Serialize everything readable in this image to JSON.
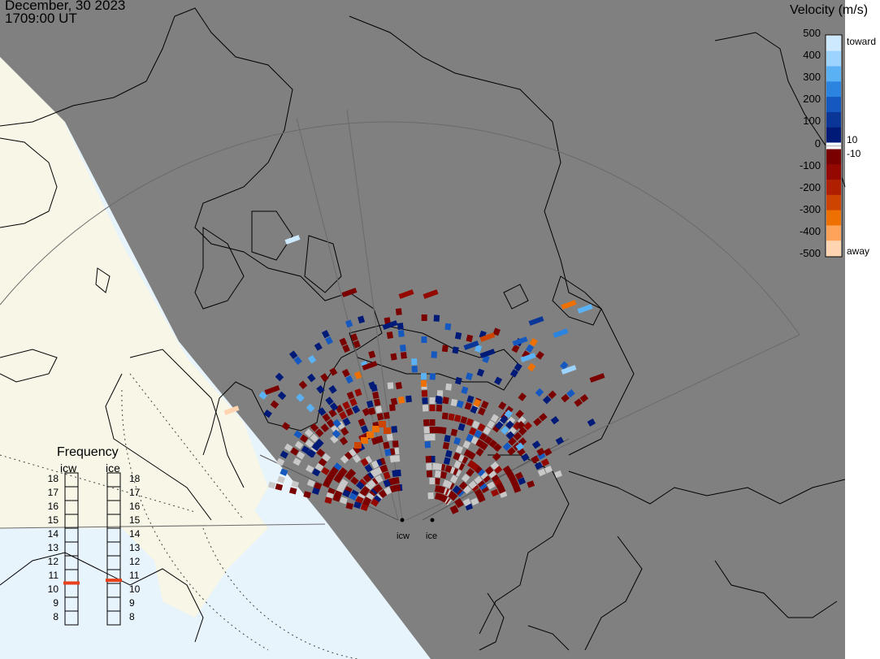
{
  "header": {
    "date": "December, 30 2023",
    "time": "1709:00 UT"
  },
  "velocity_scale": {
    "title": "Velocity (m/s)",
    "ticks": [
      "500",
      "400",
      "300",
      "200",
      "100",
      "0",
      "-100",
      "-200",
      "-300",
      "-400",
      "-500"
    ],
    "toward_label": "toward",
    "away_label": "away",
    "inner_pos_label": "10",
    "inner_neg_label": "-10",
    "colors": {
      "toward": [
        "#cde9ff",
        "#9dd3ff",
        "#5ab2f5",
        "#2a84e0",
        "#1458c0",
        "#0a3698",
        "#001a78"
      ],
      "away": [
        "#7a0000",
        "#940800",
        "#b02000",
        "#cc4400",
        "#ee7000",
        "#ffa35a",
        "#ffd4b0"
      ],
      "ground_scatter": "#c8c8c8"
    }
  },
  "frequency_panel": {
    "title": "Frequency",
    "columns": [
      {
        "label": "icw",
        "value": 10.5
      },
      {
        "label": "ice",
        "value": 10.7
      }
    ],
    "levels": [
      "18",
      "17",
      "16",
      "15",
      "14",
      "13",
      "12",
      "11",
      "10",
      "9",
      "8"
    ],
    "marker_color": "#e8401a"
  },
  "sites": [
    {
      "label": "icw"
    },
    {
      "label": "ice"
    }
  ],
  "map_colors": {
    "night": "#808080",
    "day_land": "#f8f6e6",
    "day_ocean": "#e8f4fc",
    "coast": "#000000",
    "grid": "#6a6a6a"
  }
}
